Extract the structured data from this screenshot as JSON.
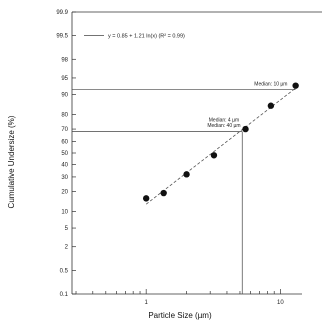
{
  "chart_data": {
    "type": "scatter",
    "xscale": "log",
    "yscale": "probability",
    "xlabel": "Particle Size (µm)",
    "ylabel": "Cumulative Undersize (%)",
    "x_tick_labels": [
      {
        "value": 1,
        "label": "1"
      },
      {
        "value": 10,
        "label": "10"
      }
    ],
    "y_ticks": [
      {
        "value": 99.9,
        "label": "99.9"
      },
      {
        "value": 99.5,
        "label": "99.5"
      },
      {
        "value": 98,
        "label": "98"
      },
      {
        "value": 95,
        "label": "95"
      },
      {
        "value": 90,
        "label": "90"
      },
      {
        "value": 80,
        "label": "80"
      },
      {
        "value": 70,
        "label": "70"
      },
      {
        "value": 60,
        "label": "60"
      },
      {
        "value": 50,
        "label": "50"
      },
      {
        "value": 40,
        "label": "40"
      },
      {
        "value": 30,
        "label": "30"
      },
      {
        "value": 20,
        "label": "20"
      },
      {
        "value": 10,
        "label": "10"
      },
      {
        "value": 5,
        "label": "5"
      },
      {
        "value": 2,
        "label": "2"
      },
      {
        "value": 0.5,
        "label": "0.5"
      },
      {
        "value": 0.1,
        "label": "0.1"
      }
    ],
    "series": [
      {
        "points": [
          {
            "x": 1.0,
            "y": 16
          },
          {
            "x": 1.35,
            "y": 19
          },
          {
            "x": 2.0,
            "y": 32
          },
          {
            "x": 3.2,
            "y": 48
          },
          {
            "x": 5.5,
            "y": 70
          },
          {
            "x": 8.5,
            "y": 85
          },
          {
            "x": 13.0,
            "y": 93
          }
        ]
      }
    ],
    "fit_line": {
      "x_range": [
        1.0,
        13.0
      ],
      "legend": "y = 0.85 + 1.21 ln(x) (R² = 0.99)"
    },
    "annotations": [
      {
        "text": "Median: 10 µm",
        "x": 8.5,
        "y": 93
      },
      {
        "text": "Median: 4 µm",
        "x": 3.8,
        "y": 75.5
      },
      {
        "text": "Median: 40 µm",
        "x": 3.8,
        "y": 71.5
      }
    ],
    "reference_lines": {
      "horizontal_y": 68,
      "vertical_x": 5.2
    },
    "xlim": [
      0.28,
      14.5
    ],
    "ylim": [
      0.1,
      99.9
    ],
    "grid": false
  }
}
